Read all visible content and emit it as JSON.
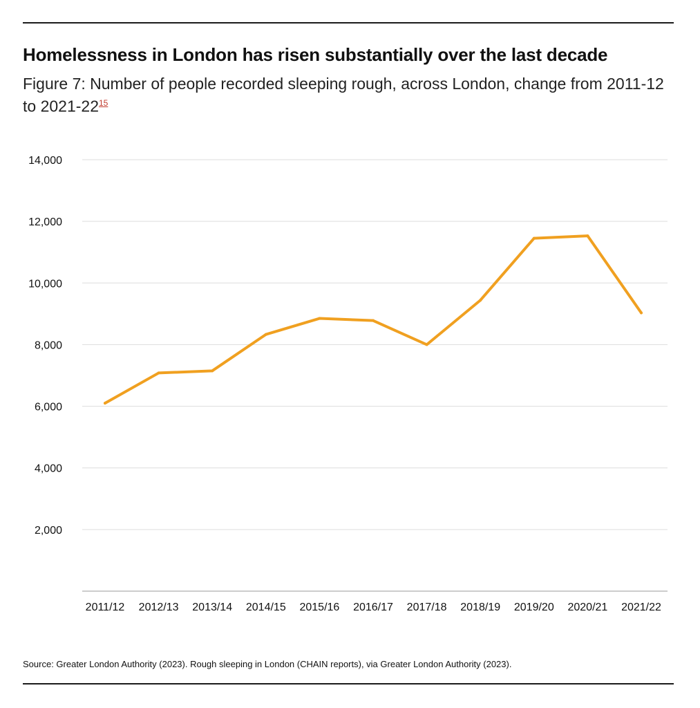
{
  "header": {
    "headline": "Homelessness in London has risen substantially over the last decade",
    "subtitle": "Figure 7: Number of people recorded sleeping rough, across London, change from 2011-12 to 2021-22",
    "footnote_ref": "15"
  },
  "chart_data": {
    "type": "line",
    "title": "Number of people recorded sleeping rough, across London",
    "xlabel": "",
    "ylabel": "",
    "categories": [
      "2011/12",
      "2012/13",
      "2013/14",
      "2014/15",
      "2015/16",
      "2016/17",
      "2017/18",
      "2018/19",
      "2019/20",
      "2020/21",
      "2021/22"
    ],
    "series": [
      {
        "name": "People sleeping rough",
        "values": [
          6100,
          7080,
          7150,
          8330,
          8850,
          8780,
          8000,
          9440,
          11450,
          11530,
          9030
        ]
      }
    ],
    "ylim": [
      0,
      14000
    ],
    "yticks": [
      2000,
      4000,
      6000,
      8000,
      10000,
      12000,
      14000
    ],
    "ytick_labels": [
      "2,000",
      "4,000",
      "6,000",
      "8,000",
      "10,000",
      "12,000",
      "14,000"
    ],
    "grid": true,
    "line_color": "#f0a020",
    "grid_color": "#dddddd"
  },
  "footer": {
    "source": "Source: Greater London Authority (2023). Rough sleeping in London (CHAIN reports), via Greater London Authority (2023)."
  }
}
